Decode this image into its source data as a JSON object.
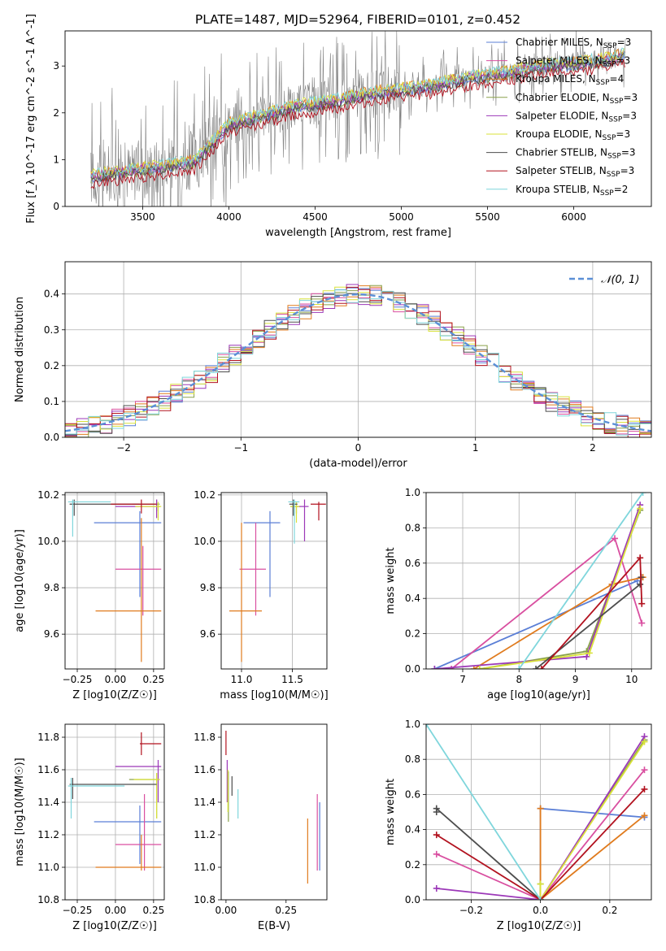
{
  "figure_title": "PLATE=1487, MJD=52964, FIBERID=0101, z=0.452",
  "colors": {
    "grid": "#b0b0b0",
    "data_line": "#808080",
    "legend_bg": "rgba(255,255,255,0.8)",
    "series": {
      "Chabrier MILES": "#5b7fd6",
      "Salpeter MILES": "#d94fa0",
      "Kroupa MILES": "#e07b1e",
      "Chabrier ELODIE": "#8aa14b",
      "Salpeter ELODIE": "#9c38b8",
      "Kroupa ELODIE": "#d9e23a",
      "Chabrier STELIB": "#4d4d4d",
      "Salpeter STELIB": "#b2121f",
      "Kroupa STELIB": "#7fd6dc"
    }
  },
  "chart_data": [
    {
      "id": "spectrum",
      "type": "line",
      "xlabel": "wavelength [Angstrom, rest frame]",
      "ylabel": "Flux [f_λ 10^-17 erg cm^-2 s^-1 A^-1]",
      "xlim": [
        3050,
        6450
      ],
      "ylim": [
        0,
        3.75
      ],
      "xticks": [
        3500,
        4000,
        4500,
        5000,
        5500,
        6000
      ],
      "yticks": [
        0,
        1,
        2,
        3
      ],
      "grid": false,
      "legend_position": "top-right",
      "legend": [
        {
          "label": "Chabrier MILES, N_SSP=3",
          "key": "Chabrier MILES"
        },
        {
          "label": "Salpeter MILES, N_SSP=3",
          "key": "Salpeter MILES"
        },
        {
          "label": "Kroupa MILES, N_SSP=4",
          "key": "Kroupa MILES"
        },
        {
          "label": "Chabrier ELODIE, N_SSP=3",
          "key": "Chabrier ELODIE"
        },
        {
          "label": "Salpeter ELODIE, N_SSP=3",
          "key": "Salpeter ELODIE"
        },
        {
          "label": "Kroupa ELODIE, N_SSP=3",
          "key": "Kroupa ELODIE"
        },
        {
          "label": "Chabrier STELIB, N_SSP=3",
          "key": "Chabrier STELIB"
        },
        {
          "label": "Salpeter STELIB, N_SSP=3",
          "key": "Salpeter STELIB"
        },
        {
          "label": "Kroupa STELIB, N_SSP=2",
          "key": "Kroupa STELIB"
        }
      ],
      "model_trend": {
        "x": [
          3200,
          3400,
          3600,
          3800,
          4000,
          4200,
          4400,
          4600,
          4800,
          5000,
          5200,
          5400,
          5600,
          5800,
          6000,
          6200,
          6300
        ],
        "y": [
          0.65,
          0.75,
          0.85,
          0.95,
          1.75,
          1.95,
          2.15,
          2.25,
          2.4,
          2.5,
          2.6,
          2.75,
          2.85,
          3.0,
          3.05,
          3.15,
          3.25
        ]
      },
      "data_span": [
        3200,
        6300
      ]
    },
    {
      "id": "residuals",
      "type": "line",
      "xlabel": "(data-model)/error",
      "ylabel": "Normed distribution",
      "xlim": [
        -2.5,
        2.5
      ],
      "ylim": [
        0,
        0.49
      ],
      "xticks": [
        -2,
        -1,
        0,
        1,
        2
      ],
      "yticks": [
        0.0,
        0.1,
        0.2,
        0.3,
        0.4
      ],
      "grid": true,
      "legend_position": "top-right",
      "legend": [
        {
          "label": "N(0,1)",
          "key": "normal"
        }
      ],
      "normal_curve": {
        "mean": 0,
        "sigma": 1
      },
      "bin_width": 0.1
    },
    {
      "id": "age-vs-Z",
      "type": "scatter",
      "xlabel": "Z [log10(Z/Z☉)]",
      "ylabel": "age [log10(age/yr)]",
      "xlim": [
        -0.33,
        0.32
      ],
      "ylim": [
        9.45,
        10.21
      ],
      "xticks": [
        -0.25,
        0.0,
        0.25
      ],
      "yticks": [
        9.6,
        9.8,
        10.0,
        10.2
      ],
      "grid": true,
      "points": [
        {
          "s": "Chabrier MILES",
          "x": 0.16,
          "y": 10.08,
          "xerr": [
            0.3,
            0.14
          ],
          "yerr": [
            0.32,
            0.05
          ]
        },
        {
          "s": "Salpeter MILES",
          "x": 0.18,
          "y": 9.88,
          "xerr": [
            0.18,
            0.12
          ],
          "yerr": [
            0.2,
            0.1
          ]
        },
        {
          "s": "Kroupa MILES",
          "x": 0.17,
          "y": 9.7,
          "xerr": [
            0.3,
            0.13
          ],
          "yerr": [
            0.22,
            0.4
          ]
        },
        {
          "s": "Chabrier ELODIE",
          "x": 0.27,
          "y": 10.16,
          "xerr": [
            0.16,
            0.02
          ],
          "yerr": [
            0.03,
            0.02
          ]
        },
        {
          "s": "Salpeter ELODIE",
          "x": 0.27,
          "y": 10.15,
          "xerr": [
            0.27,
            0.02
          ],
          "yerr": [
            0.05,
            0.03
          ]
        },
        {
          "s": "Kroupa ELODIE",
          "x": 0.28,
          "y": 10.15,
          "xerr": [
            0.15,
            0.02
          ],
          "yerr": [
            0.06,
            0.02
          ]
        },
        {
          "s": "Chabrier STELIB",
          "x": -0.27,
          "y": 10.16,
          "xerr": [
            0.03,
            0.43
          ],
          "yerr": [
            0.05,
            0.02
          ]
        },
        {
          "s": "Salpeter STELIB",
          "x": 0.17,
          "y": 10.16,
          "xerr": [
            0.2,
            0.1
          ],
          "yerr": [
            0.04,
            0.02
          ]
        },
        {
          "s": "Kroupa STELIB",
          "x": -0.28,
          "y": 10.17,
          "xerr": [
            0.03,
            0.25
          ],
          "yerr": [
            0.15,
            0.01
          ]
        }
      ]
    },
    {
      "id": "age-vs-mass",
      "type": "scatter",
      "xlabel": "mass [log10(M/M☉)]",
      "ylabel": "",
      "xlim": [
        10.8,
        11.84
      ],
      "ylim": [
        9.45,
        10.21
      ],
      "xticks": [
        11.0,
        11.5
      ],
      "yticks": [
        9.6,
        9.8,
        10.0,
        10.2
      ],
      "grid": true,
      "points": [
        {
          "s": "Chabrier MILES",
          "x": 11.28,
          "y": 10.08,
          "xerr": [
            0.26,
            0.1
          ],
          "yerr": [
            0.32,
            0.05
          ]
        },
        {
          "s": "Salpeter MILES",
          "x": 11.14,
          "y": 9.88,
          "xerr": [
            0.16,
            0.1
          ],
          "yerr": [
            0.2,
            0.2
          ]
        },
        {
          "s": "Kroupa MILES",
          "x": 11.0,
          "y": 9.7,
          "xerr": [
            0.12,
            0.2
          ],
          "yerr": [
            0.22,
            0.38
          ]
        },
        {
          "s": "Chabrier ELODIE",
          "x": 11.54,
          "y": 10.15,
          "xerr": [
            0.06,
            0.04
          ],
          "yerr": [
            0.03,
            0.02
          ]
        },
        {
          "s": "Salpeter ELODIE",
          "x": 11.62,
          "y": 10.15,
          "xerr": [
            0.08,
            0.04
          ],
          "yerr": [
            0.15,
            0.03
          ]
        },
        {
          "s": "Kroupa ELODIE",
          "x": 11.54,
          "y": 10.15,
          "xerr": [
            0.06,
            0.03
          ],
          "yerr": [
            0.07,
            0.02
          ]
        },
        {
          "s": "Chabrier STELIB",
          "x": 11.51,
          "y": 10.16,
          "xerr": [
            0.04,
            0.04
          ],
          "yerr": [
            0.05,
            0.02
          ]
        },
        {
          "s": "Salpeter STELIB",
          "x": 11.76,
          "y": 10.16,
          "xerr": [
            0.08,
            0.07
          ],
          "yerr": [
            0.07,
            0.01
          ]
        },
        {
          "s": "Kroupa STELIB",
          "x": 11.52,
          "y": 10.17,
          "xerr": [
            0.06,
            0.05
          ],
          "yerr": [
            0.18,
            0.01
          ]
        }
      ]
    },
    {
      "id": "massweight-vs-age",
      "type": "line",
      "xlabel": "age [log10(age/yr)]",
      "ylabel": "mass weight",
      "xlim": [
        6.35,
        10.35
      ],
      "ylim": [
        0,
        1.0
      ],
      "xticks": [
        7,
        8,
        9,
        10
      ],
      "yticks": [
        0.0,
        0.2,
        0.4,
        0.6,
        0.8,
        1.0
      ],
      "grid": true,
      "series": [
        {
          "s": "Chabrier MILES",
          "x": [
            6.5,
            10.1
          ],
          "y": [
            0.0,
            0.5
          ]
        },
        {
          "s": "Salpeter MILES",
          "x": [
            6.8,
            9.7,
            10.18
          ],
          "y": [
            0.0,
            0.74,
            0.26
          ]
        },
        {
          "s": "Kroupa MILES",
          "x": [
            7.2,
            9.65,
            10.2
          ],
          "y": [
            0.0,
            0.48,
            0.52
          ]
        },
        {
          "s": "Chabrier ELODIE",
          "x": [
            7.3,
            9.2,
            10.15
          ],
          "y": [
            0.0,
            0.1,
            0.9
          ]
        },
        {
          "s": "Salpeter ELODIE",
          "x": [
            6.5,
            9.2,
            10.15
          ],
          "y": [
            0.0,
            0.07,
            0.93
          ]
        },
        {
          "s": "Kroupa ELODIE",
          "x": [
            7.3,
            9.25,
            10.15
          ],
          "y": [
            0.0,
            0.09,
            0.91
          ]
        },
        {
          "s": "Chabrier STELIB",
          "x": [
            8.3,
            10.15,
            10.17
          ],
          "y": [
            0.0,
            0.48,
            0.52
          ]
        },
        {
          "s": "Salpeter STELIB",
          "x": [
            8.4,
            10.15,
            10.18
          ],
          "y": [
            0.0,
            0.63,
            0.37
          ]
        },
        {
          "s": "Kroupa STELIB",
          "x": [
            8.0,
            10.2
          ],
          "y": [
            0.0,
            1.0
          ]
        }
      ]
    },
    {
      "id": "mass-vs-Z",
      "type": "scatter",
      "xlabel": "Z [log10(Z/Z☉)]",
      "ylabel": "mass [log10(M/M☉)]",
      "xlim": [
        -0.33,
        0.32
      ],
      "ylim": [
        10.8,
        11.88
      ],
      "xticks": [
        -0.25,
        0.0,
        0.25
      ],
      "yticks": [
        10.8,
        11.0,
        11.2,
        11.4,
        11.6,
        11.8
      ],
      "grid": true,
      "points": [
        {
          "s": "Chabrier MILES",
          "x": 0.16,
          "y": 11.28,
          "xerr": [
            0.3,
            0.14
          ],
          "yerr": [
            0.26,
            0.1
          ]
        },
        {
          "s": "Salpeter MILES",
          "x": 0.19,
          "y": 11.14,
          "xerr": [
            0.19,
            0.11
          ],
          "yerr": [
            0.16,
            0.31
          ]
        },
        {
          "s": "Kroupa MILES",
          "x": 0.17,
          "y": 11.0,
          "xerr": [
            0.3,
            0.13
          ],
          "yerr": [
            0.02,
            0.2
          ]
        },
        {
          "s": "Chabrier ELODIE",
          "x": 0.27,
          "y": 11.54,
          "xerr": [
            0.18,
            0.02
          ],
          "yerr": [
            0.24,
            0.04
          ]
        },
        {
          "s": "Salpeter ELODIE",
          "x": 0.28,
          "y": 11.62,
          "xerr": [
            0.28,
            0.02
          ],
          "yerr": [
            0.22,
            0.04
          ]
        },
        {
          "s": "Kroupa ELODIE",
          "x": 0.27,
          "y": 11.54,
          "xerr": [
            0.15,
            0.02
          ],
          "yerr": [
            0.24,
            0.04
          ]
        },
        {
          "s": "Chabrier STELIB",
          "x": -0.28,
          "y": 11.51,
          "xerr": [
            0.02,
            0.55
          ],
          "yerr": [
            0.09,
            0.04
          ]
        },
        {
          "s": "Salpeter STELIB",
          "x": 0.17,
          "y": 11.76,
          "xerr": [
            0.01,
            0.13
          ],
          "yerr": [
            0.07,
            0.07
          ]
        },
        {
          "s": "Kroupa STELIB",
          "x": -0.29,
          "y": 11.5,
          "xerr": [
            0.02,
            0.35
          ],
          "yerr": [
            0.2,
            0.05
          ]
        }
      ]
    },
    {
      "id": "mass-vs-EBV",
      "type": "scatter",
      "xlabel": "E(B-V)",
      "ylabel": "",
      "xlim": [
        -0.02,
        0.42
      ],
      "ylim": [
        10.8,
        11.88
      ],
      "xticks": [
        0.0,
        0.25
      ],
      "xtick_labels": [
        "0.00",
        "0.25"
      ],
      "yticks": [
        10.8,
        11.0,
        11.2,
        11.4,
        11.6,
        11.8
      ],
      "grid": false,
      "points": [
        {
          "s": "Chabrier MILES",
          "x": 0.39,
          "y": 11.28,
          "xerr": [
            0,
            0
          ],
          "yerr": [
            0.3,
            0.12
          ]
        },
        {
          "s": "Salpeter MILES",
          "x": 0.38,
          "y": 11.14,
          "xerr": [
            0,
            0
          ],
          "yerr": [
            0.16,
            0.31
          ]
        },
        {
          "s": "Kroupa MILES",
          "x": 0.34,
          "y": 11.0,
          "xerr": [
            0,
            0
          ],
          "yerr": [
            0.1,
            0.3
          ]
        },
        {
          "s": "Chabrier ELODIE",
          "x": 0.01,
          "y": 11.54,
          "xerr": [
            0,
            0
          ],
          "yerr": [
            0.26,
            0.05
          ]
        },
        {
          "s": "Salpeter ELODIE",
          "x": 0.005,
          "y": 11.62,
          "xerr": [
            0,
            0
          ],
          "yerr": [
            0.22,
            0.04
          ]
        },
        {
          "s": "Kroupa ELODIE",
          "x": 0.008,
          "y": 11.54,
          "xerr": [
            0,
            0
          ],
          "yerr": [
            0.2,
            0.06
          ]
        },
        {
          "s": "Chabrier STELIB",
          "x": 0.025,
          "y": 11.51,
          "xerr": [
            0,
            0
          ],
          "yerr": [
            0.07,
            0.05
          ]
        },
        {
          "s": "Salpeter STELIB",
          "x": 0.0,
          "y": 11.76,
          "xerr": [
            0,
            0
          ],
          "yerr": [
            0.07,
            0.08
          ]
        },
        {
          "s": "Kroupa STELIB",
          "x": 0.05,
          "y": 11.4,
          "xerr": [
            0,
            0
          ],
          "yerr": [
            0.1,
            0.08
          ]
        }
      ]
    },
    {
      "id": "massweight-vs-Z",
      "type": "line",
      "xlabel": "Z [log10(Z/Z☉)]",
      "ylabel": "mass weight",
      "xlim": [
        -0.33,
        0.32
      ],
      "ylim": [
        0,
        1.0
      ],
      "xticks": [
        -0.2,
        0.0,
        0.2
      ],
      "yticks": [
        0.0,
        0.2,
        0.4,
        0.6,
        0.8,
        1.0
      ],
      "grid": true,
      "series": [
        {
          "s": "Chabrier MILES",
          "x": [
            0.0,
            0.0,
            0.3
          ],
          "y": [
            0.0,
            0.52,
            0.47
          ]
        },
        {
          "s": "Salpeter MILES",
          "x": [
            -0.3,
            0.0,
            0.3
          ],
          "y": [
            0.26,
            0.0,
            0.74
          ]
        },
        {
          "s": "Kroupa MILES",
          "x": [
            0.0,
            0.0,
            0.3
          ],
          "y": [
            0.52,
            0.0,
            0.48
          ]
        },
        {
          "s": "Chabrier ELODIE",
          "x": [
            0.0,
            0.0,
            0.3
          ],
          "y": [
            0.09,
            0.0,
            0.91
          ]
        },
        {
          "s": "Salpeter ELODIE",
          "x": [
            -0.3,
            0.0,
            0.3
          ],
          "y": [
            0.065,
            0.0,
            0.93
          ]
        },
        {
          "s": "Kroupa ELODIE",
          "x": [
            0.0,
            0.0,
            0.3
          ],
          "y": [
            0.09,
            0.0,
            0.9
          ]
        },
        {
          "s": "Chabrier STELIB",
          "x": [
            -0.3,
            -0.3,
            0.0
          ],
          "y": [
            0.5,
            0.52,
            0.0
          ]
        },
        {
          "s": "Salpeter STELIB",
          "x": [
            -0.3,
            0.0,
            0.3
          ],
          "y": [
            0.37,
            0.0,
            0.63
          ]
        },
        {
          "s": "Kroupa STELIB",
          "x": [
            -0.33,
            0.0
          ],
          "y": [
            1.0,
            0.0
          ]
        }
      ]
    }
  ]
}
